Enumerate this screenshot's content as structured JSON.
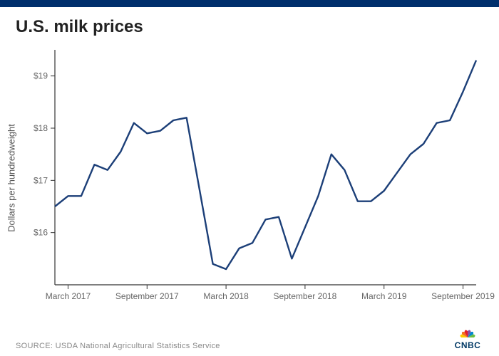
{
  "top_bar_color": "#002f6c",
  "title": "U.S. milk prices",
  "title_color": "#222222",
  "chart": {
    "type": "line",
    "series_color": "#1c3f78",
    "line_width": 2.4,
    "background_color": "#ffffff",
    "axis_color": "#333333",
    "grid_color": "#dddddd",
    "tick_color": "#666666",
    "ylabel": "Dollars per hundredweight",
    "ylim": [
      15,
      19.5
    ],
    "yticks": [
      16,
      17,
      18,
      19
    ],
    "ytick_labels": [
      "$16",
      "$17",
      "$18",
      "$19"
    ],
    "xlabels": [
      {
        "i": 1,
        "label": "March 2017"
      },
      {
        "i": 7,
        "label": "September 2017"
      },
      {
        "i": 13,
        "label": "March 2018"
      },
      {
        "i": 19,
        "label": "September 2018"
      },
      {
        "i": 25,
        "label": "March 2019"
      },
      {
        "i": 31,
        "label": "September 2019"
      }
    ],
    "n_points": 33,
    "values": [
      16.5,
      16.7,
      16.7,
      17.3,
      17.2,
      17.55,
      18.1,
      17.9,
      17.95,
      18.15,
      18.2,
      16.8,
      15.4,
      15.3,
      15.7,
      15.8,
      16.25,
      16.3,
      15.5,
      16.1,
      16.7,
      17.5,
      17.2,
      16.6,
      16.6,
      16.8,
      17.15,
      17.5,
      17.7,
      18.1,
      18.15,
      18.7,
      19.3
    ]
  },
  "source_label": "SOURCE:",
  "source_text": "USDA National Agricultural Statistics Service",
  "logo": {
    "text": "CNBC",
    "peacock_colors": [
      "#fccb00",
      "#f37021",
      "#e41e26",
      "#8850a0",
      "#0089d0",
      "#6cbe45"
    ],
    "bg": "#ffffff",
    "text_color": "#003865"
  }
}
